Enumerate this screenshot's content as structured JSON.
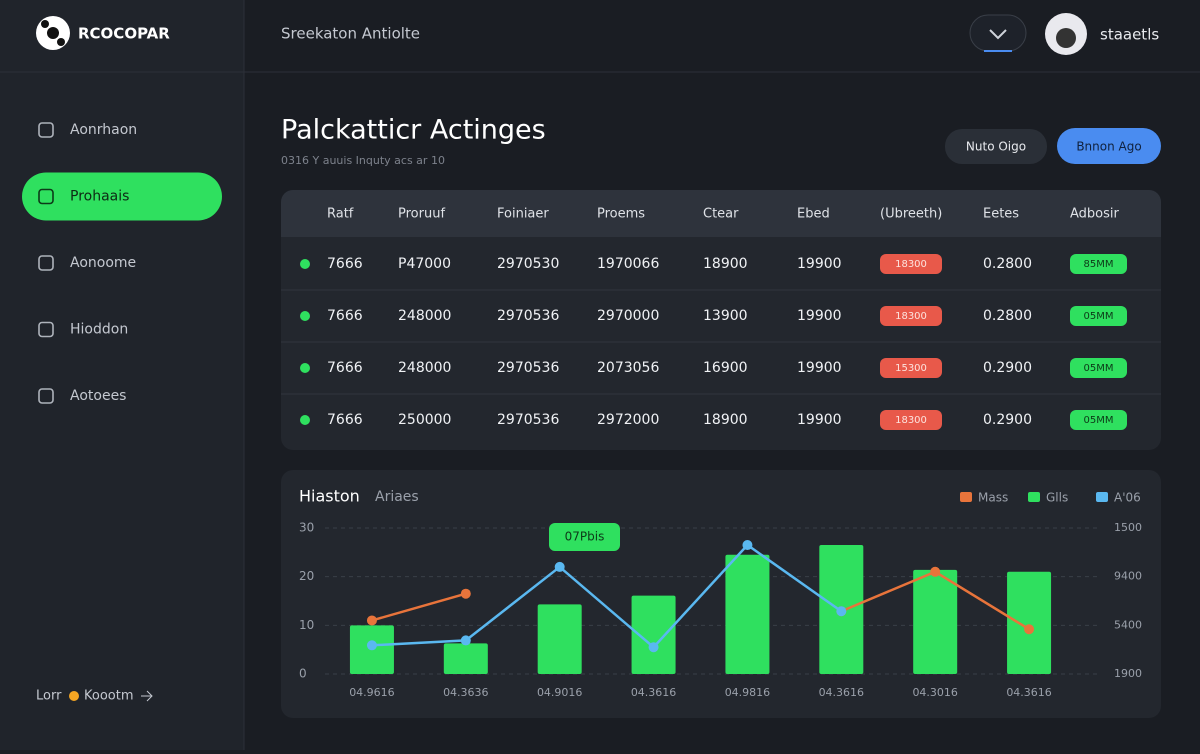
{
  "header": {
    "brand": "RCOCOPAR",
    "breadcrumb": "Sreekaton Antiolte",
    "user": "staaetls"
  },
  "sidebar": {
    "items": [
      "Aonrhaon",
      "Prohaais",
      "Aonoome",
      "Hioddon",
      "Aotoees"
    ],
    "active": 1,
    "footer": [
      "Lorr",
      "Koootm"
    ]
  },
  "page": {
    "title": "Palckatticr Actinges",
    "subtitle": "0316 Y auuis Inquty acs ar 10",
    "buttons": [
      "Nuto Oigo",
      "Bnnon Ago"
    ]
  },
  "table": {
    "headers": [
      "Ratf",
      "Proruuf",
      "Foiniaer",
      "Proems",
      "Ctear",
      "Ebed",
      "(Ubreeth)",
      "Eetes",
      "Adbosir"
    ],
    "rows": [
      [
        "7666",
        "P47000",
        "2970530",
        "1970066",
        "18900",
        "19900",
        "18300",
        "0.2800",
        "85MM"
      ],
      [
        "7666",
        "248000",
        "2970536",
        "2970000",
        "13900",
        "19900",
        "18300",
        "0.2800",
        "05MM"
      ],
      [
        "7666",
        "248000",
        "2970536",
        "2073056",
        "16900",
        "19900",
        "15300",
        "0.2900",
        "05MM"
      ],
      [
        "7666",
        "250000",
        "2970536",
        "2972000",
        "18900",
        "19900",
        "18300",
        "0.2900",
        "05MM"
      ]
    ]
  },
  "chart": {
    "type": "bar",
    "title": "Hiaston",
    "subtitle": "Ariaes",
    "categories": [
      "04.9616",
      "04.3636",
      "04.9016",
      "04.3616",
      "04.9816",
      "04.3616",
      "04.3016",
      "04.3616"
    ],
    "series": [
      {
        "name": "Mass",
        "color": "#e8743b",
        "type": "line",
        "values": [
          11,
          16.5,
          null,
          null,
          null,
          12.9,
          21,
          9.2
        ]
      },
      {
        "name": "Glls",
        "color": "#2fe05f",
        "type": "bar",
        "values": [
          10,
          6.3,
          14.3,
          16.1,
          24.5,
          26.5,
          21.4,
          21
        ]
      },
      {
        "name": "A'06",
        "color": "#5ab8f0",
        "type": "line",
        "values": [
          5.9,
          6.9,
          22,
          5.5,
          26.5,
          12.9,
          null,
          null
        ]
      }
    ],
    "ylim": [
      0,
      30
    ],
    "yticks": [
      0,
      10,
      20,
      30
    ],
    "right_axis_labels": [
      "1500",
      "9400",
      "5400",
      "1900"
    ],
    "annotation": "07Pbis",
    "grid": true
  }
}
